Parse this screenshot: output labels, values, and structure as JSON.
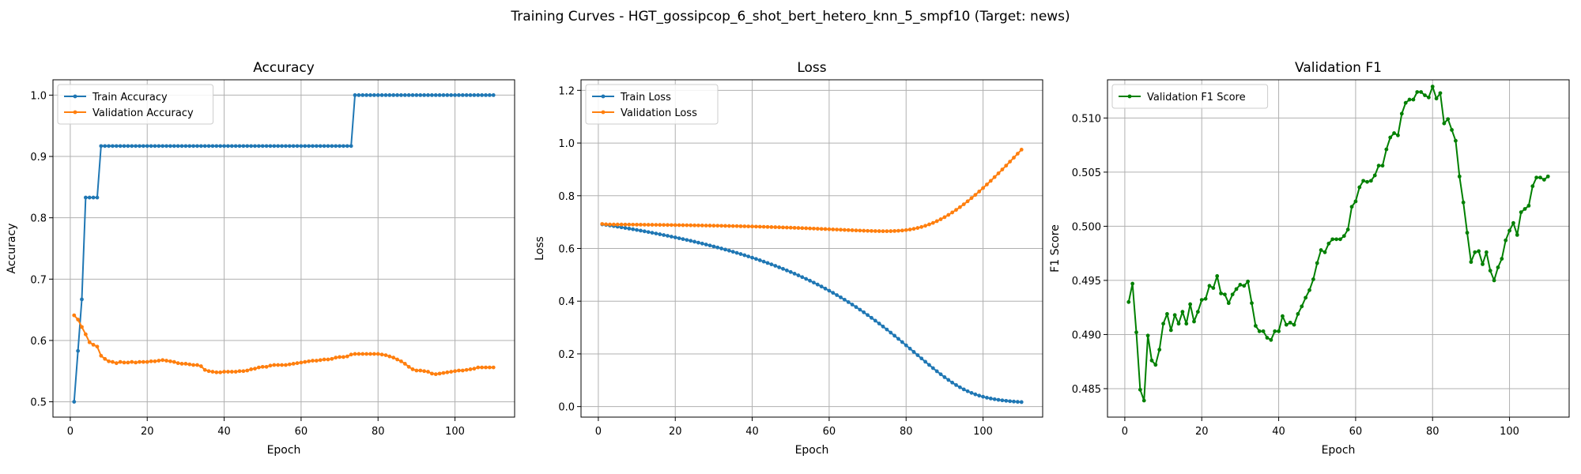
{
  "figure": {
    "suptitle": "Training Curves - HGT_gossipcop_6_shot_bert_hetero_knn_5_smpf10 (Target: news)"
  },
  "colors": {
    "train": "#1f77b4",
    "validation": "#ff7f0e",
    "f1": "#008000",
    "grid": "#b0b0b0",
    "axis": "#000000"
  },
  "chart_data": [
    {
      "type": "line",
      "title": "Accuracy",
      "xlabel": "Epoch",
      "ylabel": "Accuracy",
      "xlim": [
        -4.5,
        115.5
      ],
      "ylim": [
        0.475,
        1.025
      ],
      "xticks": [
        0,
        20,
        40,
        60,
        80,
        100
      ],
      "yticks": [
        0.5,
        0.6,
        0.7,
        0.8,
        0.9,
        1.0
      ],
      "ytick_labels": [
        "0.5",
        "0.6",
        "0.7",
        "0.8",
        "0.9",
        "1.0"
      ],
      "grid": true,
      "legend_loc": "upper left",
      "series": [
        {
          "name": "Train Accuracy",
          "color": "#1f77b4",
          "x_start": 1,
          "values": [
            0.5,
            0.583,
            0.667,
            0.833,
            0.833,
            0.833,
            0.833,
            0.917,
            0.917,
            0.917,
            0.917,
            0.917,
            0.917,
            0.917,
            0.917,
            0.917,
            0.917,
            0.917,
            0.917,
            0.917,
            0.917,
            0.917,
            0.917,
            0.917,
            0.917,
            0.917,
            0.917,
            0.917,
            0.917,
            0.917,
            0.917,
            0.917,
            0.917,
            0.917,
            0.917,
            0.917,
            0.917,
            0.917,
            0.917,
            0.917,
            0.917,
            0.917,
            0.917,
            0.917,
            0.917,
            0.917,
            0.917,
            0.917,
            0.917,
            0.917,
            0.917,
            0.917,
            0.917,
            0.917,
            0.917,
            0.917,
            0.917,
            0.917,
            0.917,
            0.917,
            0.917,
            0.917,
            0.917,
            0.917,
            0.917,
            0.917,
            0.917,
            0.917,
            0.917,
            0.917,
            0.917,
            0.917,
            0.917,
            1.0,
            1.0,
            1.0,
            1.0,
            1.0,
            1.0,
            1.0,
            1.0,
            1.0,
            1.0,
            1.0,
            1.0,
            1.0,
            1.0,
            1.0,
            1.0,
            1.0,
            1.0,
            1.0,
            1.0,
            1.0,
            1.0,
            1.0,
            1.0,
            1.0,
            1.0,
            1.0,
            1.0,
            1.0,
            1.0,
            1.0,
            1.0,
            1.0,
            1.0,
            1.0,
            1.0,
            1.0
          ]
        },
        {
          "name": "Validation Accuracy",
          "color": "#ff7f0e",
          "x_start": 1,
          "values": [
            0.641,
            0.634,
            0.622,
            0.61,
            0.597,
            0.593,
            0.59,
            0.575,
            0.57,
            0.566,
            0.565,
            0.563,
            0.565,
            0.564,
            0.564,
            0.565,
            0.564,
            0.565,
            0.565,
            0.565,
            0.566,
            0.566,
            0.567,
            0.568,
            0.567,
            0.566,
            0.565,
            0.563,
            0.562,
            0.562,
            0.561,
            0.56,
            0.56,
            0.558,
            0.552,
            0.55,
            0.549,
            0.548,
            0.548,
            0.549,
            0.549,
            0.549,
            0.549,
            0.55,
            0.55,
            0.551,
            0.553,
            0.554,
            0.556,
            0.557,
            0.557,
            0.559,
            0.56,
            0.56,
            0.56,
            0.56,
            0.561,
            0.562,
            0.563,
            0.564,
            0.565,
            0.566,
            0.567,
            0.567,
            0.568,
            0.569,
            0.569,
            0.57,
            0.572,
            0.573,
            0.573,
            0.574,
            0.577,
            0.578,
            0.578,
            0.578,
            0.578,
            0.578,
            0.578,
            0.578,
            0.577,
            0.576,
            0.574,
            0.572,
            0.569,
            0.566,
            0.562,
            0.557,
            0.553,
            0.551,
            0.551,
            0.55,
            0.549,
            0.546,
            0.545,
            0.546,
            0.547,
            0.548,
            0.549,
            0.55,
            0.551,
            0.551,
            0.552,
            0.553,
            0.554,
            0.556,
            0.556,
            0.556,
            0.556,
            0.556
          ]
        }
      ]
    },
    {
      "type": "line",
      "title": "Loss",
      "xlabel": "Epoch",
      "ylabel": "Loss",
      "xlim": [
        -4.5,
        115.5
      ],
      "ylim": [
        -0.04,
        1.24
      ],
      "xticks": [
        0,
        20,
        40,
        60,
        80,
        100
      ],
      "yticks": [
        0.0,
        0.2,
        0.4,
        0.6,
        0.8,
        1.0,
        1.2
      ],
      "ytick_labels": [
        "0.0",
        "0.2",
        "0.4",
        "0.6",
        "0.8",
        "1.0",
        "1.2"
      ],
      "grid": true,
      "legend_loc": "upper left",
      "series": [
        {
          "name": "Train Loss",
          "color": "#1f77b4",
          "x_start": 1,
          "values": [
            0.6913,
            0.6894,
            0.6872,
            0.6849,
            0.6826,
            0.6802,
            0.6778,
            0.6753,
            0.6728,
            0.6702,
            0.6676,
            0.665,
            0.6623,
            0.6595,
            0.6567,
            0.6538,
            0.6509,
            0.648,
            0.6449,
            0.6419,
            0.6387,
            0.6355,
            0.6323,
            0.629,
            0.6256,
            0.6221,
            0.6186,
            0.615,
            0.6113,
            0.6075,
            0.6037,
            0.5998,
            0.5958,
            0.5917,
            0.5875,
            0.5832,
            0.5788,
            0.5743,
            0.5697,
            0.565,
            0.5602,
            0.5552,
            0.5501,
            0.5449,
            0.5396,
            0.5341,
            0.5284,
            0.5227,
            0.5167,
            0.5106,
            0.5044,
            0.4979,
            0.4913,
            0.4845,
            0.4776,
            0.4704,
            0.463,
            0.4555,
            0.4477,
            0.4397,
            0.4315,
            0.4231,
            0.4145,
            0.4056,
            0.3965,
            0.3871,
            0.3776,
            0.3677,
            0.3577,
            0.3474,
            0.3368,
            0.326,
            0.315,
            0.3038,
            0.2924,
            0.2807,
            0.2689,
            0.2569,
            0.2447,
            0.2324,
            0.22,
            0.2075,
            0.1951,
            0.1826,
            0.1702,
            0.158,
            0.1459,
            0.1341,
            0.1227,
            0.1116,
            0.1011,
            0.0911,
            0.0818,
            0.0732,
            0.0653,
            0.0582,
            0.0519,
            0.0463,
            0.0415,
            0.0373,
            0.0337,
            0.0306,
            0.0279,
            0.0256,
            0.0236,
            0.0219,
            0.0204,
            0.0191,
            0.018,
            0.0171
          ]
        },
        {
          "name": "Validation Loss",
          "color": "#ff7f0e",
          "x_start": 1,
          "values": [
            0.693,
            0.6916,
            0.6911,
            0.691,
            0.6909,
            0.6908,
            0.6907,
            0.6906,
            0.6904,
            0.6903,
            0.6902,
            0.69,
            0.6899,
            0.6897,
            0.6896,
            0.6894,
            0.6892,
            0.689,
            0.6889,
            0.6887,
            0.6885,
            0.6883,
            0.6881,
            0.6879,
            0.6876,
            0.6874,
            0.6872,
            0.6869,
            0.6867,
            0.6864,
            0.6862,
            0.6859,
            0.6856,
            0.6853,
            0.685,
            0.6847,
            0.6843,
            0.684,
            0.6836,
            0.6833,
            0.6829,
            0.6825,
            0.6821,
            0.6817,
            0.6812,
            0.6808,
            0.6803,
            0.6798,
            0.6793,
            0.6788,
            0.6783,
            0.6777,
            0.6772,
            0.6766,
            0.676,
            0.6754,
            0.6748,
            0.6742,
            0.6736,
            0.6729,
            0.6722,
            0.6716,
            0.671,
            0.6703,
            0.6697,
            0.6691,
            0.6684,
            0.6679,
            0.6673,
            0.6668,
            0.6664,
            0.666,
            0.6658,
            0.6656,
            0.6656,
            0.6658,
            0.6663,
            0.6671,
            0.6682,
            0.6698,
            0.6719,
            0.6745,
            0.6777,
            0.6815,
            0.686,
            0.6912,
            0.697,
            0.7036,
            0.7108,
            0.7187,
            0.7273,
            0.7365,
            0.7463,
            0.7567,
            0.7676,
            0.779,
            0.791,
            0.8033,
            0.8161,
            0.8293,
            0.8428,
            0.8566,
            0.8707,
            0.885,
            0.8996,
            0.9144,
            0.9294,
            0.9445,
            0.9597,
            0.975
          ]
        }
      ]
    },
    {
      "type": "line",
      "title": "Validation F1",
      "xlabel": "Epoch",
      "ylabel": "F1 Score",
      "xlim": [
        -4.5,
        115.5
      ],
      "ylim": [
        0.48237,
        0.51353
      ],
      "xticks": [
        0,
        20,
        40,
        60,
        80,
        100
      ],
      "yticks": [
        0.485,
        0.49,
        0.495,
        0.5,
        0.505,
        0.51
      ],
      "ytick_labels": [
        "0.485",
        "0.490",
        "0.495",
        "0.500",
        "0.505",
        "0.510"
      ],
      "grid": true,
      "legend_loc": "upper left",
      "series": [
        {
          "name": "Validation F1 Score",
          "color": "#008000",
          "x_start": 1,
          "values": [
            0.493,
            0.4947,
            0.4902,
            0.4849,
            0.4839,
            0.4899,
            0.4876,
            0.4872,
            0.4886,
            0.491,
            0.4919,
            0.4904,
            0.4918,
            0.491,
            0.4921,
            0.491,
            0.4928,
            0.4912,
            0.4921,
            0.4932,
            0.4933,
            0.4945,
            0.4943,
            0.4954,
            0.4938,
            0.4937,
            0.4929,
            0.4937,
            0.4942,
            0.4946,
            0.4945,
            0.4949,
            0.4929,
            0.4908,
            0.4903,
            0.4903,
            0.4897,
            0.4895,
            0.4903,
            0.4903,
            0.4917,
            0.4909,
            0.4911,
            0.4909,
            0.4919,
            0.4926,
            0.4934,
            0.4941,
            0.4951,
            0.4966,
            0.4978,
            0.4976,
            0.4984,
            0.4988,
            0.4988,
            0.4988,
            0.4991,
            0.4997,
            0.5018,
            0.5023,
            0.5036,
            0.5042,
            0.5041,
            0.5042,
            0.5047,
            0.5056,
            0.5056,
            0.5071,
            0.5082,
            0.5086,
            0.5084,
            0.5104,
            0.5114,
            0.5117,
            0.5117,
            0.5124,
            0.5124,
            0.5121,
            0.5119,
            0.5129,
            0.5118,
            0.5123,
            0.5095,
            0.5099,
            0.5089,
            0.5079,
            0.5046,
            0.5022,
            0.4994,
            0.4967,
            0.4976,
            0.4977,
            0.4965,
            0.4976,
            0.4959,
            0.495,
            0.4962,
            0.497,
            0.4987,
            0.4996,
            0.5003,
            0.4992,
            0.5013,
            0.5016,
            0.5019,
            0.5037,
            0.5045,
            0.5045,
            0.5043,
            0.5046
          ]
        }
      ]
    }
  ]
}
